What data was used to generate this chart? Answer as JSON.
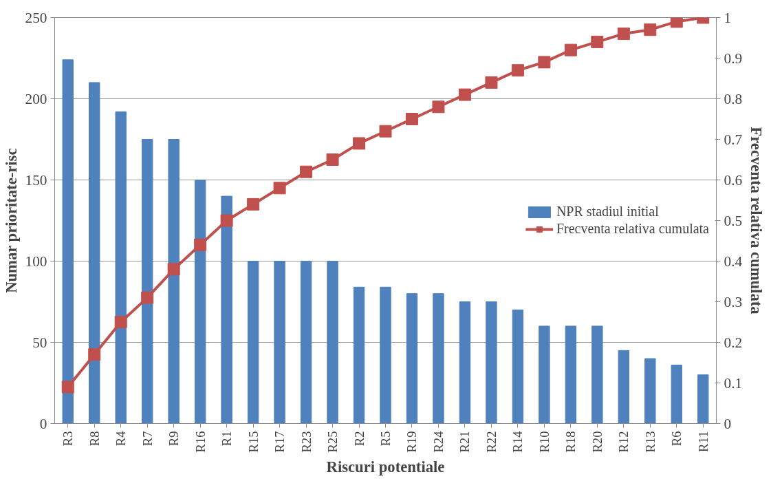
{
  "chart_data": {
    "type": "bar",
    "xlabel": "Riscuri potentiale",
    "ylabel": "Numar prioritate-risc",
    "y2label": "Frecventa relativa cumulata",
    "categories": [
      "R3",
      "R8",
      "R4",
      "R7",
      "R9",
      "R16",
      "R1",
      "R15",
      "R17",
      "R23",
      "R25",
      "R2",
      "R5",
      "R19",
      "R24",
      "R21",
      "R22",
      "R14",
      "R10",
      "R18",
      "R20",
      "R12",
      "R13",
      "R6",
      "R11"
    ],
    "series": [
      {
        "name": "NPR stadiul initial",
        "color": "#4f81bd",
        "values": [
          224,
          210,
          192,
          175,
          175,
          150,
          140,
          100,
          100,
          100,
          100,
          84,
          84,
          80,
          80,
          75,
          75,
          70,
          60,
          60,
          60,
          45,
          40,
          36,
          30
        ]
      },
      {
        "name": "Frecventa relativa cumulata",
        "type": "line",
        "axis": "y2",
        "color": "#c0504d",
        "marker": "square",
        "values": [
          0.09,
          0.17,
          0.25,
          0.31,
          0.38,
          0.44,
          0.5,
          0.54,
          0.58,
          0.62,
          0.65,
          0.69,
          0.72,
          0.75,
          0.78,
          0.81,
          0.84,
          0.87,
          0.89,
          0.92,
          0.94,
          0.96,
          0.97,
          0.99,
          1.0
        ]
      }
    ],
    "ylim": [
      0,
      250
    ],
    "yticks": [
      0,
      50,
      100,
      150,
      200,
      250
    ],
    "y2lim": [
      0,
      1
    ],
    "y2ticks": [
      0,
      {
        "value": 0.1,
        "label": "0.1"
      },
      {
        "value": 0.2,
        "label": "0.2"
      },
      {
        "value": 0.3,
        "label": "0.3"
      },
      {
        "value": 0.4,
        "label": "0.4"
      },
      {
        "value": 0.5,
        "label": "0.5"
      },
      {
        "value": 0.6,
        "label": "0.6"
      },
      {
        "value": 0.7,
        "label": "0.7"
      },
      {
        "value": 0.8,
        "label": "0.8"
      },
      {
        "value": 0.9,
        "label": "0.9"
      },
      1
    ],
    "grid": "y",
    "legend": "right"
  }
}
